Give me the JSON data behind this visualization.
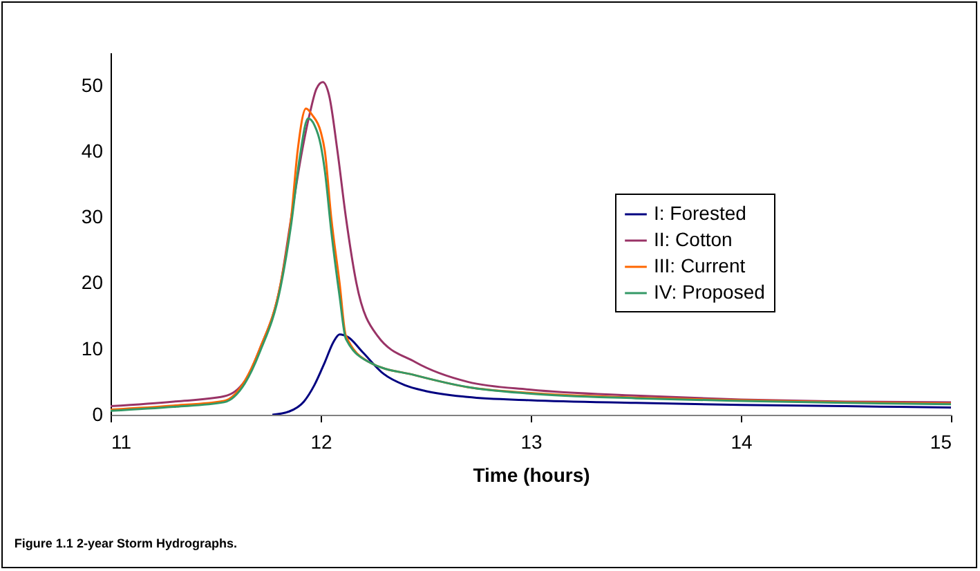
{
  "chart_data": {
    "type": "line",
    "xlabel": "Time (hours)",
    "annotations": [
      "Figure 1.1  2-year Storm Hydrographs."
    ],
    "xlim": [
      11,
      15
    ],
    "xticks": [
      11,
      12,
      13,
      14,
      15
    ],
    "ylim": [
      0,
      55
    ],
    "yticks": [
      0,
      10,
      20,
      30,
      40,
      50
    ],
    "grid": false,
    "legend": "right",
    "series": [
      {
        "name": "I:  Forested",
        "color": "#000080",
        "x": [
          11.77,
          11.85,
          11.92,
          11.97,
          12.02,
          12.06,
          12.09,
          12.13,
          12.2,
          12.3,
          12.4,
          12.5,
          12.7,
          13,
          13.5,
          14,
          14.5,
          15
        ],
        "values": [
          0,
          0.5,
          2,
          4.5,
          8,
          11,
          12.2,
          11.8,
          9.5,
          6.2,
          4.5,
          3.6,
          2.7,
          2.2,
          1.8,
          1.5,
          1.3,
          1.1
        ]
      },
      {
        "name": "II: Cotton",
        "color": "#993366",
        "x": [
          11,
          11.3,
          11.54,
          11.64,
          11.71,
          11.81,
          11.86,
          11.9,
          11.95,
          11.98,
          12.01,
          12.04,
          12.08,
          12.12,
          12.17,
          12.27,
          12.45,
          12.7,
          13,
          13.5,
          14,
          14.5,
          15
        ],
        "values": [
          1.3,
          2,
          2.8,
          5.2,
          10,
          20,
          30,
          38,
          46,
          49.5,
          50.5,
          48.5,
          40,
          30,
          20,
          12,
          8,
          5,
          3.8,
          2.9,
          2.3,
          2,
          1.9
        ]
      },
      {
        "name": "III: Current",
        "color": "#ff6600",
        "x": [
          11,
          11.3,
          11.54,
          11.64,
          11.71,
          11.81,
          11.86,
          11.89,
          11.93,
          11.96,
          12,
          12.02,
          12.05,
          12.09,
          12.12,
          12.23,
          12.45,
          12.7,
          13,
          13.5,
          14,
          14.5,
          15
        ],
        "values": [
          0.8,
          1.4,
          2.1,
          5.2,
          10,
          20,
          30,
          40,
          46.5,
          45.5,
          43,
          40,
          30,
          20,
          12,
          8,
          6,
          4.2,
          3.3,
          2.6,
          2.2,
          1.9,
          1.7
        ]
      },
      {
        "name": "IV: Proposed",
        "color": "#339966",
        "x": [
          11,
          11.3,
          11.54,
          11.64,
          11.71,
          11.81,
          11.86,
          11.9,
          11.94,
          11.97,
          12,
          12.02,
          12.05,
          12.09,
          12.12,
          12.23,
          12.45,
          12.7,
          13,
          13.5,
          14,
          14.5,
          15
        ],
        "values": [
          0.6,
          1.2,
          1.9,
          4.8,
          9.5,
          19.5,
          29,
          39,
          45,
          44,
          41,
          37,
          28,
          18,
          11.5,
          8,
          6,
          4.2,
          3.2,
          2.5,
          2.1,
          1.8,
          1.6
        ]
      }
    ]
  }
}
